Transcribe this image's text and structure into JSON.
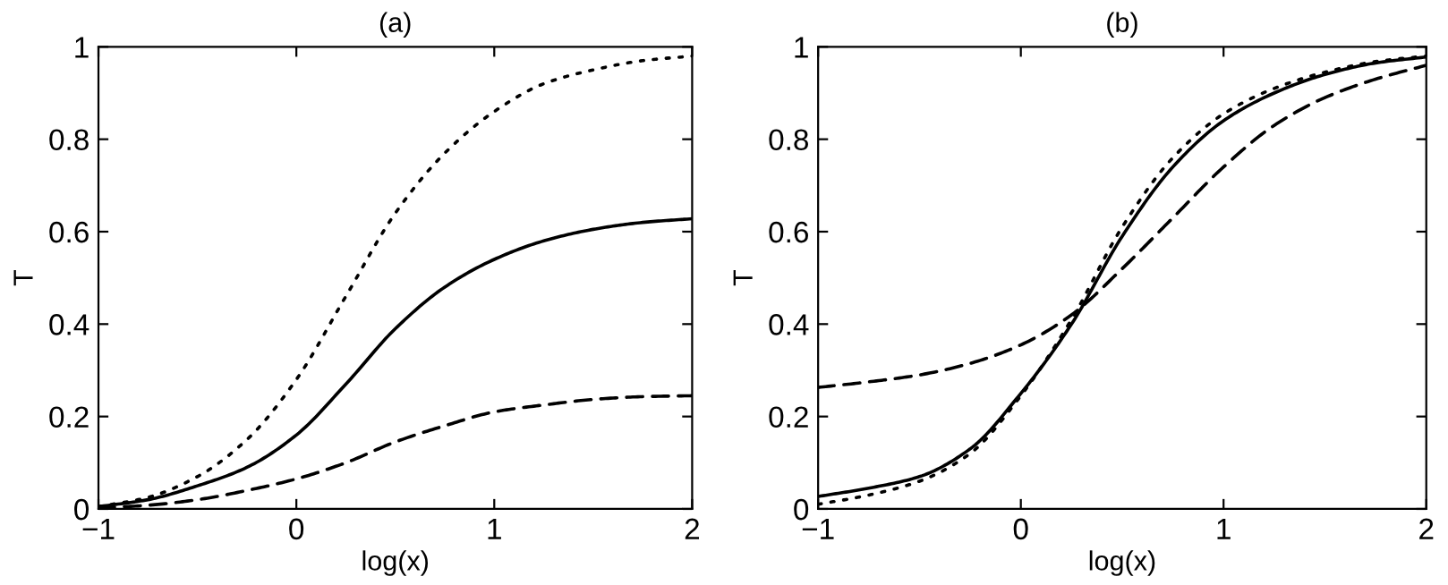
{
  "chart_data": [
    {
      "type": "line",
      "title": "(a)",
      "xlabel": "log(x)",
      "ylabel": "T",
      "xlim": [
        -1,
        2
      ],
      "ylim": [
        0,
        1
      ],
      "xticks": [
        {
          "value": -1,
          "label": "−1"
        },
        0,
        1,
        2
      ],
      "yticks": [
        0,
        0.2,
        0.4,
        0.6,
        0.8,
        1
      ],
      "x": [
        -1,
        -0.75,
        -0.5,
        -0.25,
        0,
        0.25,
        0.5,
        0.75,
        1,
        1.25,
        1.5,
        1.75,
        2
      ],
      "series": [
        {
          "color": "#000000",
          "line_style": "solid",
          "values": [
            0.005,
            0.02,
            0.05,
            0.09,
            0.16,
            0.27,
            0.39,
            0.48,
            0.54,
            0.58,
            0.605,
            0.62,
            0.628
          ]
        },
        {
          "color": "#000000",
          "line_style": "dotted",
          "values": [
            0.005,
            0.025,
            0.07,
            0.15,
            0.28,
            0.46,
            0.64,
            0.77,
            0.86,
            0.92,
            0.95,
            0.97,
            0.98
          ]
        },
        {
          "color": "#000000",
          "line_style": "dashed",
          "values": [
            0.002,
            0.008,
            0.02,
            0.04,
            0.065,
            0.1,
            0.145,
            0.18,
            0.21,
            0.225,
            0.237,
            0.243,
            0.245
          ]
        }
      ]
    },
    {
      "type": "line",
      "title": "(b)",
      "xlabel": "log(x)",
      "ylabel": "T",
      "xlim": [
        -1,
        2
      ],
      "ylim": [
        0,
        1
      ],
      "xticks": [
        {
          "value": -1,
          "label": "−1"
        },
        0,
        1,
        2
      ],
      "yticks": [
        0,
        0.2,
        0.4,
        0.6,
        0.8,
        1
      ],
      "x": [
        -1,
        -0.75,
        -0.5,
        -0.25,
        0,
        0.25,
        0.5,
        0.75,
        1,
        1.25,
        1.5,
        1.75,
        2
      ],
      "series": [
        {
          "color": "#000000",
          "line_style": "solid",
          "values": [
            0.027,
            0.045,
            0.07,
            0.13,
            0.25,
            0.4,
            0.59,
            0.74,
            0.84,
            0.9,
            0.94,
            0.965,
            0.978
          ]
        },
        {
          "color": "#000000",
          "line_style": "dotted",
          "values": [
            0.01,
            0.03,
            0.06,
            0.12,
            0.245,
            0.41,
            0.61,
            0.76,
            0.855,
            0.91,
            0.945,
            0.968,
            0.98
          ]
        },
        {
          "color": "#000000",
          "line_style": "dashed",
          "values": [
            0.263,
            0.275,
            0.29,
            0.315,
            0.355,
            0.42,
            0.52,
            0.63,
            0.74,
            0.83,
            0.89,
            0.93,
            0.96
          ]
        }
      ]
    }
  ]
}
